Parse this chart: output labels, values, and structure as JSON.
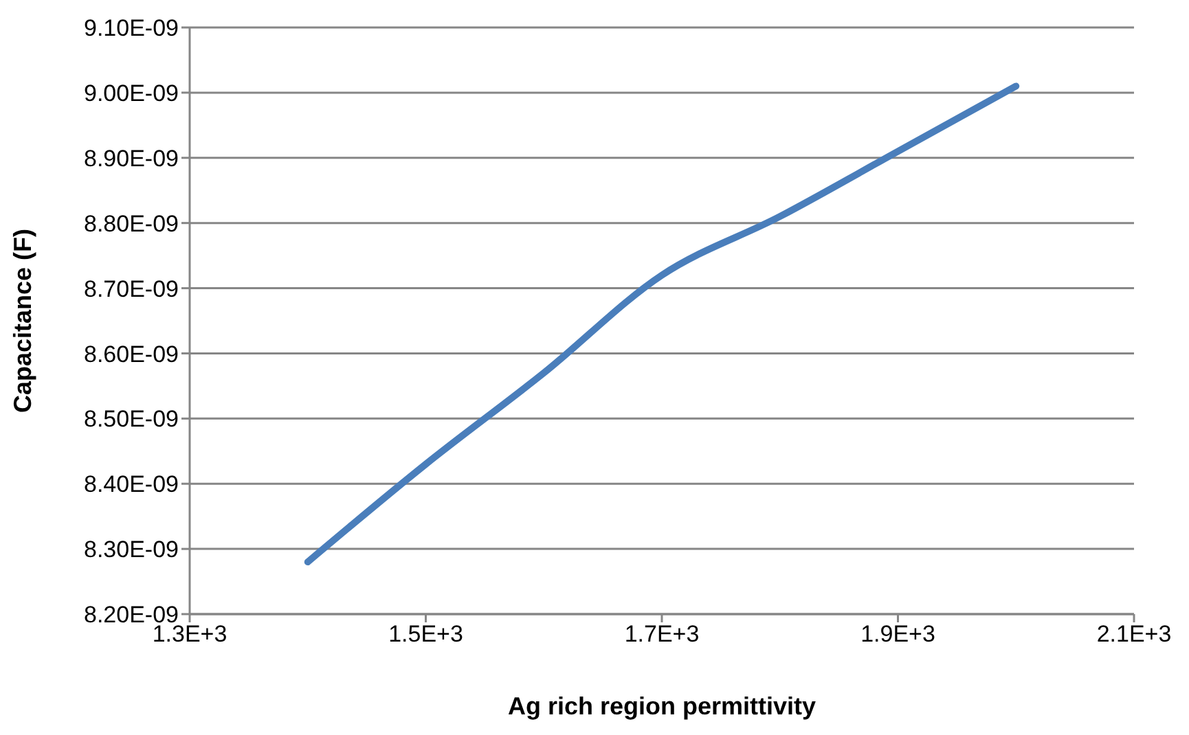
{
  "chart_data": {
    "type": "line",
    "xlabel": "Ag rich region permittivity",
    "ylabel": "Capacitance (F)",
    "x": [
      1400,
      1500,
      1600,
      1700,
      1800,
      1900,
      2000
    ],
    "series": [
      {
        "color": "#4a7ebb",
        "values": [
          8.28e-09,
          8.43e-09,
          8.57e-09,
          8.72e-09,
          8.81e-09,
          8.91e-09,
          9.01e-09
        ]
      }
    ],
    "xlim": [
      1300,
      2100
    ],
    "xticks": [
      {
        "value": 1300,
        "label": "1.3E+3"
      },
      {
        "value": 1500,
        "label": "1.5E+3"
      },
      {
        "value": 1700,
        "label": "1.7E+3"
      },
      {
        "value": 1900,
        "label": "1.9E+3"
      },
      {
        "value": 2100,
        "label": "2.1E+3"
      }
    ],
    "ylim": [
      8.2e-09,
      9.1e-09
    ],
    "yticks": [
      {
        "value": 8.2e-09,
        "label": "8.20E-09"
      },
      {
        "value": 8.3e-09,
        "label": "8.30E-09"
      },
      {
        "value": 8.4e-09,
        "label": "8.40E-09"
      },
      {
        "value": 8.5e-09,
        "label": "8.50E-09"
      },
      {
        "value": 8.6e-09,
        "label": "8.60E-09"
      },
      {
        "value": 8.7e-09,
        "label": "8.70E-09"
      },
      {
        "value": 8.8e-09,
        "label": "8.80E-09"
      },
      {
        "value": 8.9e-09,
        "label": "8.90E-09"
      },
      {
        "value": 9e-09,
        "label": "9.00E-09"
      },
      {
        "value": 9.1e-09,
        "label": "9.10E-09"
      }
    ],
    "grid": "y",
    "marker": "none"
  }
}
